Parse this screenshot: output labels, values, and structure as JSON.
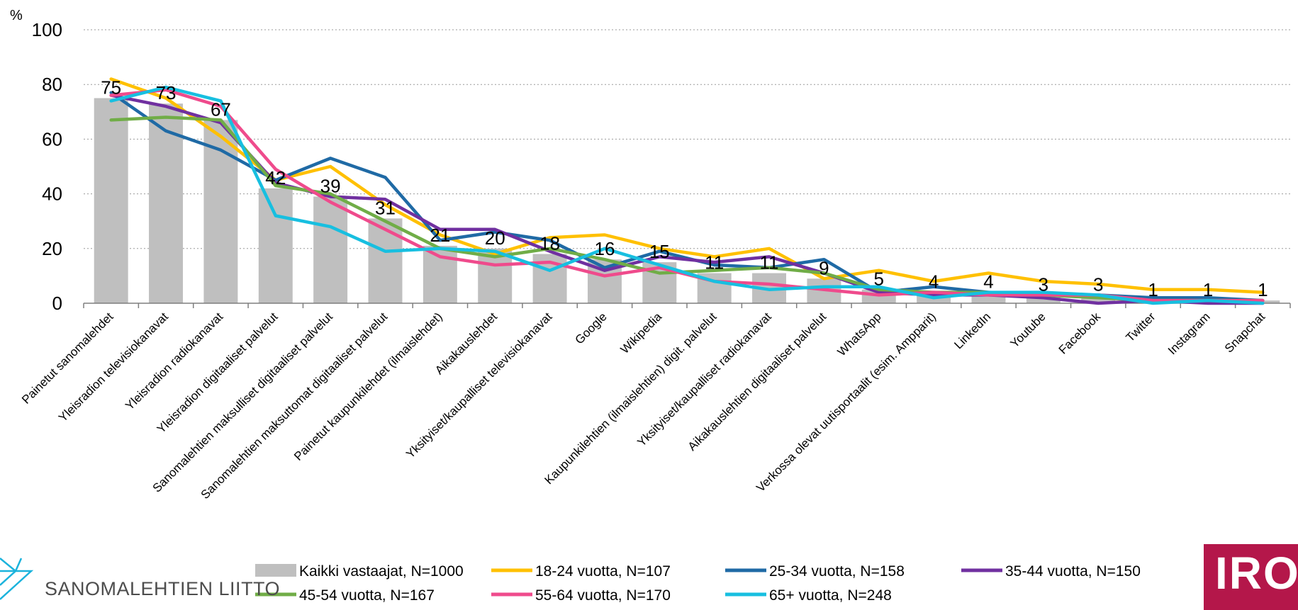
{
  "brand_left": {
    "name": "SANOMALEHTIEN LIITTO",
    "icon": "newspaper-association-logo-icon"
  },
  "brand_right": {
    "text": "IRO",
    "color": "#b4174a"
  },
  "chart_data": {
    "type": "bar",
    "unit_label": "%",
    "ylim": [
      0,
      100
    ],
    "yticks": [
      0,
      20,
      40,
      60,
      80,
      100
    ],
    "grid": true,
    "legend_position": "bottom",
    "categories": [
      "Painetut sanomalehdet",
      "Yleisradion televisiokanavat",
      "Yleisradion radiokanavat",
      "Yleisradion digitaaliset palvelut",
      "Sanomalehtien maksulliset digitaaliset palvelut",
      "Sanomalehtien maksuttomat digitaaliset palvelut",
      "Painetut kaupunkilehdet (ilmaislehdet)",
      "Aikakauslehdet",
      "Yksityiset/kaupalliset televisiokanavat",
      "Google",
      "Wikipedia",
      "Kaupunkilehtien (ilmaislehtien) digit. palvelut",
      "Yksityiset/kaupalliset radiokanavat",
      "Aikakauslehtien digitaaliset palvelut",
      "WhatsApp",
      "Verkossa olevat uutisportaalit (esim. Ampparit)",
      "LinkedIn",
      "Youtube",
      "Facebook",
      "Twitter",
      "Instagram",
      "Snapchat"
    ],
    "bar_series": {
      "name": "Kaikki vastaajat, N=1000",
      "color": "#bfbfbf",
      "values": [
        75,
        73,
        67,
        42,
        39,
        31,
        21,
        20,
        18,
        16,
        15,
        11,
        11,
        9,
        5,
        4,
        4,
        3,
        3,
        1,
        1,
        1
      ]
    },
    "line_series": [
      {
        "name": "18-24 vuotta, N=107",
        "color": "#ffc000",
        "values": [
          82,
          75,
          61,
          45,
          50,
          36,
          25,
          18,
          24,
          25,
          20,
          17,
          20,
          9,
          12,
          8,
          11,
          8,
          7,
          5,
          5,
          4
        ]
      },
      {
        "name": "25-34 vuotta, N=158",
        "color": "#1f6aa5",
        "values": [
          77,
          63,
          56,
          45,
          53,
          46,
          23,
          26,
          23,
          13,
          19,
          14,
          13,
          16,
          4,
          6,
          4,
          3,
          3,
          2,
          2,
          1
        ]
      },
      {
        "name": "35-44 vuotta, N=150",
        "color": "#7030a0",
        "values": [
          76,
          72,
          66,
          44,
          39,
          38,
          27,
          27,
          19,
          12,
          17,
          15,
          17,
          11,
          4,
          3,
          3,
          2,
          0,
          1,
          0,
          0
        ]
      },
      {
        "name": "45-54 vuotta, N=167",
        "color": "#70ad47",
        "values": [
          67,
          68,
          67,
          43,
          40,
          30,
          20,
          17,
          20,
          16,
          11,
          12,
          13,
          11,
          5,
          4,
          4,
          3,
          2,
          1,
          1,
          1
        ]
      },
      {
        "name": "55-64 vuotta, N=170",
        "color": "#ef4b8c",
        "values": [
          76,
          78,
          72,
          49,
          37,
          27,
          17,
          14,
          15,
          10,
          13,
          8,
          7,
          5,
          3,
          4,
          3,
          3,
          3,
          1,
          1,
          1
        ]
      },
      {
        "name": "65+ vuotta, N=248",
        "color": "#17bfe0",
        "values": [
          74,
          79,
          74,
          32,
          28,
          19,
          20,
          19,
          12,
          20,
          14,
          8,
          5,
          6,
          6,
          2,
          4,
          4,
          3,
          0,
          1,
          0
        ]
      }
    ]
  }
}
